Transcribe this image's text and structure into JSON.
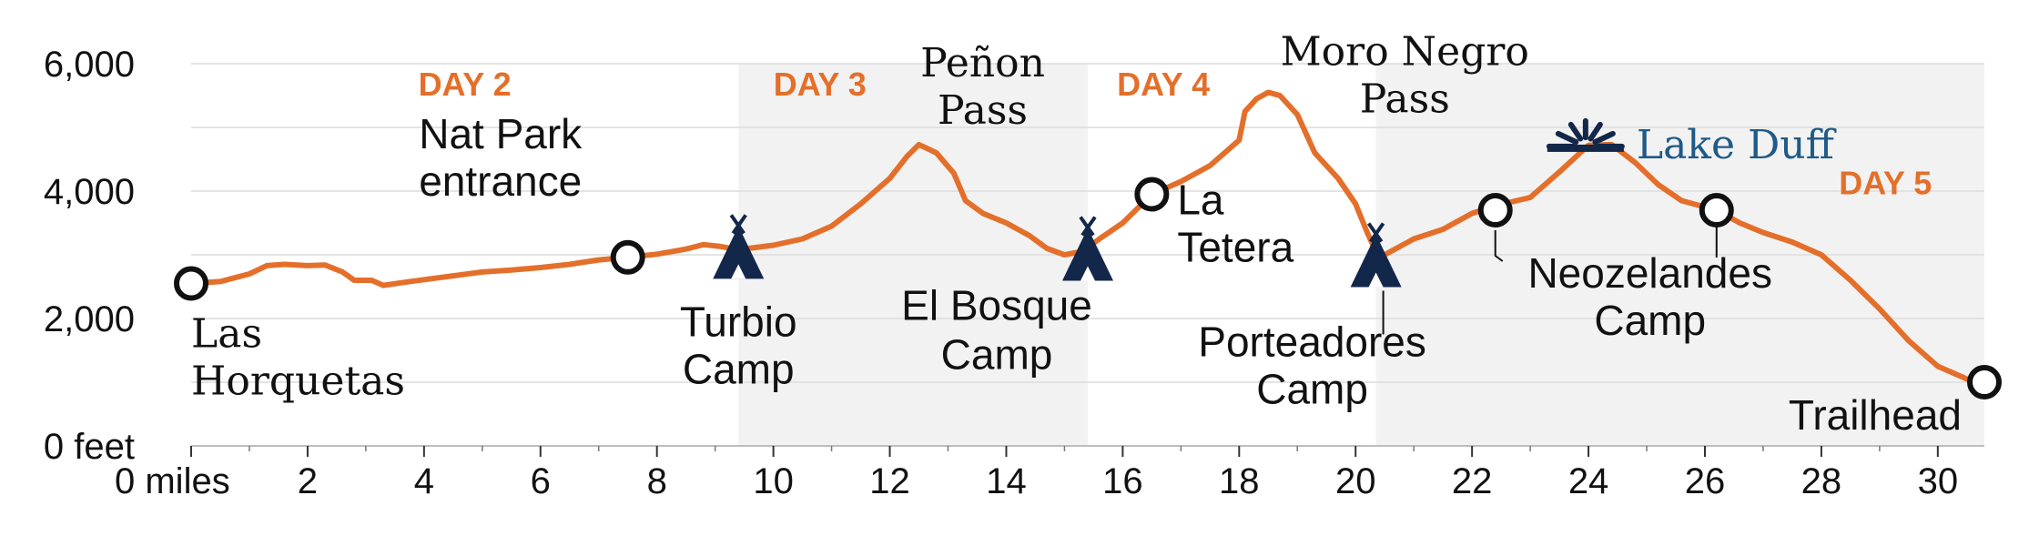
{
  "chart_data": {
    "type": "area",
    "x_unit": "miles",
    "y_unit": "feet",
    "xlim": [
      0,
      30.8
    ],
    "ylim": [
      0,
      6000
    ],
    "grid": true,
    "x_ticks": [
      0,
      2,
      4,
      6,
      8,
      10,
      12,
      14,
      16,
      18,
      20,
      22,
      24,
      26,
      28,
      30
    ],
    "x_tick_labels": [
      "0 miles",
      "2",
      "4",
      "6",
      "8",
      "10",
      "12",
      "14",
      "16",
      "18",
      "20",
      "22",
      "24",
      "26",
      "28",
      "30"
    ],
    "y_ticks": [
      0,
      2000,
      4000,
      6000
    ],
    "y_tick_labels": [
      "0 feet",
      "2,000",
      "4,000",
      "6,000"
    ],
    "series": [
      {
        "color": "#e46f2a",
        "points": [
          [
            0,
            2550
          ],
          [
            0.5,
            2580
          ],
          [
            1,
            2700
          ],
          [
            1.3,
            2830
          ],
          [
            1.6,
            2850
          ],
          [
            2,
            2830
          ],
          [
            2.3,
            2840
          ],
          [
            2.6,
            2730
          ],
          [
            2.8,
            2600
          ],
          [
            3.1,
            2600
          ],
          [
            3.3,
            2520
          ],
          [
            3.6,
            2560
          ],
          [
            4,
            2610
          ],
          [
            4.5,
            2670
          ],
          [
            5,
            2730
          ],
          [
            5.5,
            2760
          ],
          [
            6,
            2800
          ],
          [
            6.5,
            2850
          ],
          [
            7,
            2920
          ],
          [
            7.5,
            2960
          ],
          [
            8,
            3010
          ],
          [
            8.5,
            3090
          ],
          [
            8.8,
            3160
          ],
          [
            9.1,
            3130
          ],
          [
            9.4,
            3080
          ],
          [
            10,
            3150
          ],
          [
            10.5,
            3250
          ],
          [
            11,
            3450
          ],
          [
            11.5,
            3800
          ],
          [
            12,
            4200
          ],
          [
            12.3,
            4550
          ],
          [
            12.5,
            4730
          ],
          [
            12.8,
            4600
          ],
          [
            13.1,
            4280
          ],
          [
            13.3,
            3850
          ],
          [
            13.6,
            3650
          ],
          [
            14,
            3500
          ],
          [
            14.4,
            3300
          ],
          [
            14.7,
            3100
          ],
          [
            15,
            3000
          ],
          [
            15.3,
            3050
          ],
          [
            15.6,
            3250
          ],
          [
            16,
            3500
          ],
          [
            16.5,
            3950
          ],
          [
            17,
            4150
          ],
          [
            17.5,
            4400
          ],
          [
            18,
            4800
          ],
          [
            18.1,
            5250
          ],
          [
            18.3,
            5450
          ],
          [
            18.5,
            5550
          ],
          [
            18.7,
            5500
          ],
          [
            19,
            5200
          ],
          [
            19.3,
            4600
          ],
          [
            19.7,
            4200
          ],
          [
            20,
            3800
          ],
          [
            20.2,
            3350
          ],
          [
            20.4,
            2950
          ],
          [
            20.7,
            3100
          ],
          [
            21,
            3250
          ],
          [
            21.5,
            3400
          ],
          [
            22,
            3650
          ],
          [
            22.4,
            3770
          ],
          [
            23,
            3900
          ],
          [
            23.5,
            4300
          ],
          [
            24,
            4720
          ],
          [
            24.4,
            4730
          ],
          [
            24.8,
            4450
          ],
          [
            25.2,
            4100
          ],
          [
            25.6,
            3850
          ],
          [
            26.2,
            3700
          ],
          [
            26.6,
            3500
          ],
          [
            27,
            3350
          ],
          [
            27.5,
            3200
          ],
          [
            28,
            3000
          ],
          [
            28.5,
            2600
          ],
          [
            29,
            2150
          ],
          [
            29.5,
            1650
          ],
          [
            30,
            1250
          ],
          [
            30.5,
            1050
          ],
          [
            30.8,
            1000
          ]
        ]
      }
    ],
    "day_bands": [
      {
        "label": "DAY 2",
        "start": 0,
        "end": 9.4,
        "shaded": false
      },
      {
        "label": "DAY 3",
        "start": 9.4,
        "end": 15.4,
        "shaded": true
      },
      {
        "label": "DAY 4",
        "start": 15.4,
        "end": 20.35,
        "shaded": false
      },
      {
        "label": "DAY 5",
        "start": 20.35,
        "end": 30.8,
        "shaded": true
      }
    ],
    "markers": [
      {
        "type": "waypoint",
        "x": 0,
        "y": 2550,
        "lines": [
          "Las",
          "Horquetas"
        ],
        "font": "serif"
      },
      {
        "type": "waypoint",
        "x": 7.5,
        "y": 2960,
        "lines": [
          "Nat Park",
          "entrance"
        ],
        "font": "sans"
      },
      {
        "type": "camp",
        "x": 9.4,
        "y": 3080,
        "lines": [
          "Turbio",
          "Camp"
        ],
        "font": "sans"
      },
      {
        "type": "label",
        "x": 12.5,
        "y": 4730,
        "lines": [
          "Peñon",
          "Pass"
        ],
        "font": "serif"
      },
      {
        "type": "camp",
        "x": 15.4,
        "y": 3050,
        "lines": [
          "El Bosque",
          "Camp"
        ],
        "font": "sans"
      },
      {
        "type": "waypoint",
        "x": 16.5,
        "y": 3950,
        "lines": [
          "La",
          "Tetera"
        ],
        "font": "sans"
      },
      {
        "type": "label",
        "x": 18.5,
        "y": 5550,
        "lines": [
          "Moro Negro",
          "Pass"
        ],
        "font": "serif"
      },
      {
        "type": "camp",
        "x": 20.35,
        "y": 2950,
        "lines": [
          "Porteadores",
          "Camp"
        ],
        "font": "sans"
      },
      {
        "type": "waypoint",
        "x": 22.4,
        "y": 3700,
        "lines": [
          "Neozelandes",
          "Camp"
        ],
        "font": "sans"
      },
      {
        "type": "lake",
        "x": 24.2,
        "y": 4730,
        "lines": [
          "Lake Duff"
        ],
        "font": "serif"
      },
      {
        "type": "waypoint",
        "x": 26.2,
        "y": 3700,
        "lines": [],
        "font": "sans"
      },
      {
        "type": "waypoint",
        "x": 30.8,
        "y": 1000,
        "lines": [
          "Trailhead"
        ],
        "font": "sans"
      }
    ]
  }
}
